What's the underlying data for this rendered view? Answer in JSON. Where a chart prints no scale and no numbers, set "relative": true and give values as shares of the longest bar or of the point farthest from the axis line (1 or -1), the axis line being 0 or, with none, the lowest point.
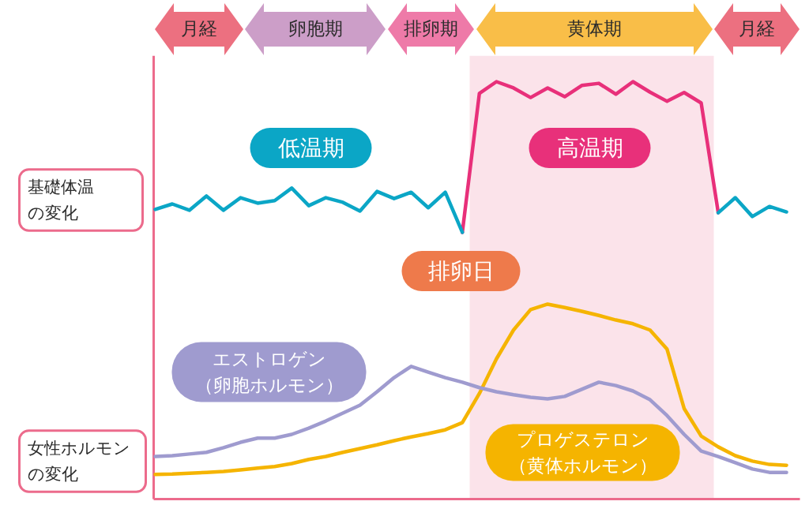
{
  "chart_data": {
    "type": "line",
    "relative": true,
    "categories": [
      null,
      null,
      null,
      null,
      null,
      null,
      null,
      null,
      null,
      null,
      null,
      null,
      null,
      null,
      null,
      null,
      null,
      null,
      null,
      null,
      null,
      null,
      null,
      null,
      null,
      null,
      null,
      null,
      null,
      null,
      null,
      null,
      null,
      null,
      null,
      null,
      null,
      null
    ],
    "series": [
      {
        "name": "低温期",
        "color": "#0ba6c6",
        "values": [
          0.694,
          0.707,
          0.692,
          0.726,
          0.692,
          0.722,
          0.709,
          0.715,
          0.745,
          0.703,
          0.722,
          0.711,
          0.69,
          0.737,
          0.72,
          0.735,
          0.698,
          0.735,
          0.639,
          null,
          null,
          null,
          null,
          null,
          null,
          null,
          null,
          null,
          null,
          null,
          null,
          null,
          null,
          0.686,
          0.722,
          0.677,
          0.701,
          0.688
        ]
      },
      {
        "name": "高温期",
        "color": "#e8307a",
        "values": [
          null,
          null,
          null,
          null,
          null,
          null,
          null,
          null,
          null,
          null,
          null,
          null,
          null,
          null,
          null,
          null,
          null,
          null,
          0.639,
          0.972,
          1.0,
          0.985,
          0.962,
          0.985,
          0.964,
          0.991,
          0.996,
          0.97,
          1.0,
          0.975,
          0.953,
          0.974,
          0.949,
          0.686,
          null,
          null,
          null,
          null
        ]
      },
      {
        "name": "エストロゲン（卵胞ホルモン）",
        "color": "#9f9bcf",
        "values": [
          0.102,
          0.104,
          0.108,
          0.112,
          0.123,
          0.136,
          0.146,
          0.146,
          0.155,
          0.17,
          0.187,
          0.206,
          0.225,
          0.257,
          0.291,
          0.318,
          0.304,
          0.291,
          0.28,
          0.267,
          0.257,
          0.25,
          0.244,
          0.24,
          0.246,
          0.263,
          0.28,
          0.272,
          0.259,
          0.238,
          0.2,
          0.155,
          0.115,
          0.102,
          0.087,
          0.072,
          0.064,
          0.064
        ]
      },
      {
        "name": "プロゲステロン（黄体ホルモン）",
        "color": "#f5b400",
        "values": [
          0.059,
          0.06,
          0.062,
          0.064,
          0.066,
          0.07,
          0.074,
          0.078,
          0.085,
          0.095,
          0.102,
          0.112,
          0.121,
          0.13,
          0.14,
          0.149,
          0.157,
          0.166,
          0.183,
          0.253,
          0.336,
          0.405,
          0.454,
          0.467,
          0.459,
          0.45,
          0.44,
          0.429,
          0.42,
          0.405,
          0.359,
          0.217,
          0.151,
          0.125,
          0.104,
          0.091,
          0.083,
          0.081
        ]
      }
    ],
    "annotations": [
      "月経",
      "卵胞期",
      "排卵期",
      "黄体期",
      "月経",
      "基礎体温の変化",
      "女性ホルモンの変化",
      "排卵日"
    ]
  }
}
